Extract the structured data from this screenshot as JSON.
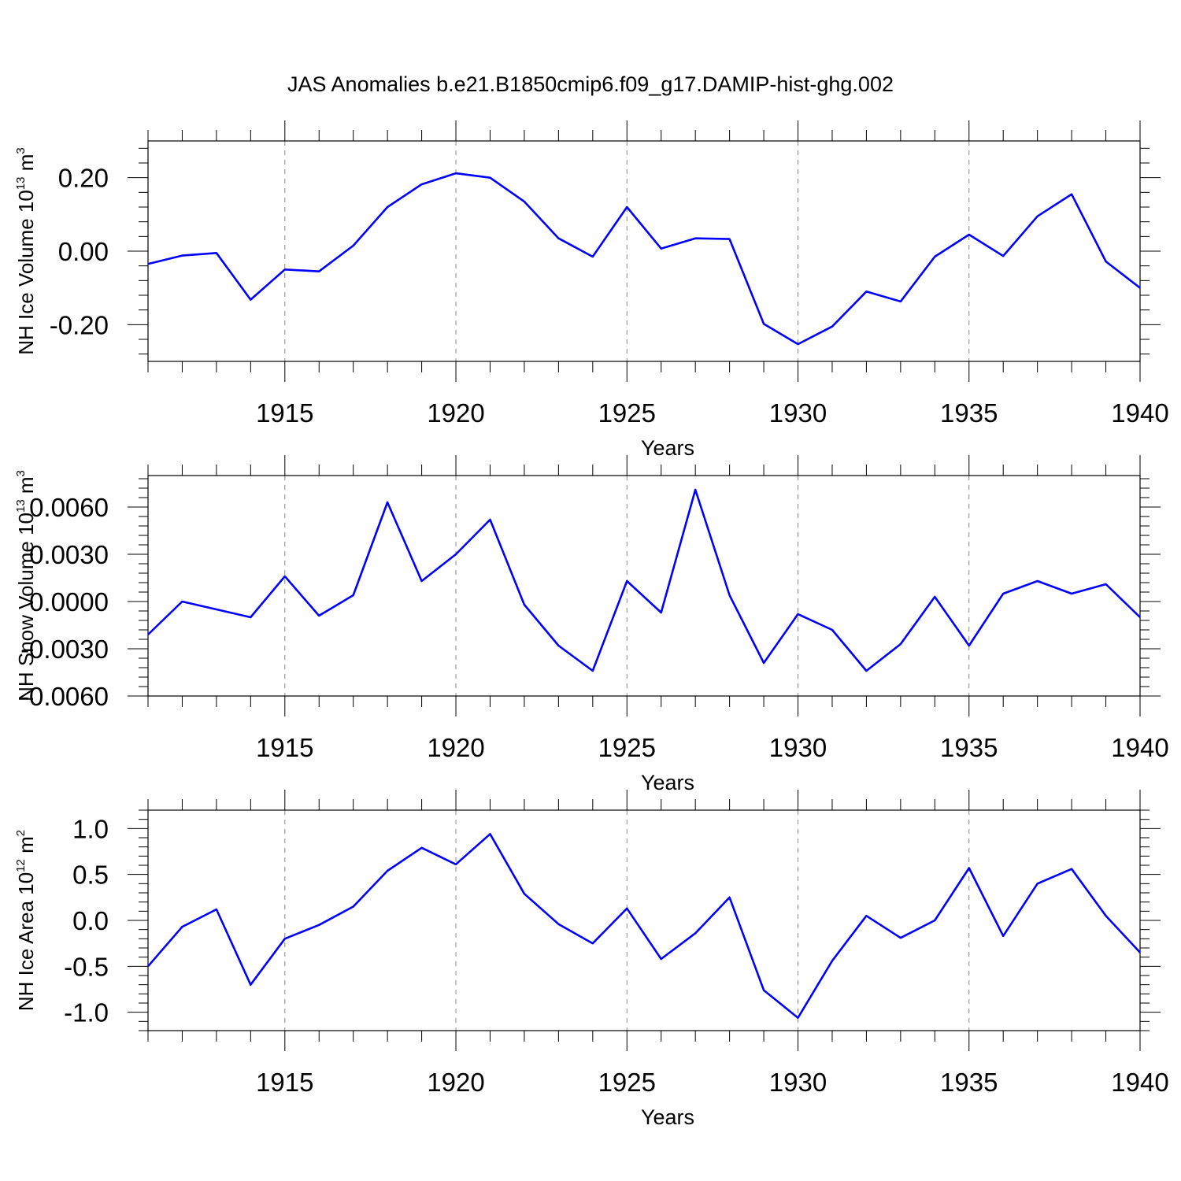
{
  "title": "JAS Anomalies b.e21.B1850cmip6.f09_g17.DAMIP-hist-ghg.002",
  "colors": {
    "line": "#0000ff",
    "grid": "#888888",
    "axes": "#000000"
  },
  "chart_data": [
    {
      "type": "line",
      "ylabel": {
        "text": "NH Ice Volume 10",
        "sup": "13",
        "unit": " m",
        "unit_sup": "3"
      },
      "xlabel": "Years",
      "xlim": [
        1911,
        1940
      ],
      "ylim": [
        -0.3,
        0.3
      ],
      "xticks": [
        "1915",
        "1920",
        "1925",
        "1930",
        "1935",
        "1940"
      ],
      "yticks": [
        {
          "value": 0.2,
          "label": "0.20"
        },
        {
          "value": 0.0,
          "label": "0.00"
        },
        {
          "value": -0.2,
          "label": "-0.20"
        }
      ],
      "grid": "x-major-dashed",
      "x": [
        1911,
        1912,
        1913,
        1914,
        1915,
        1916,
        1917,
        1918,
        1919,
        1920,
        1921,
        1922,
        1923,
        1924,
        1925,
        1926,
        1927,
        1928,
        1929,
        1930,
        1931,
        1932,
        1933,
        1934,
        1935,
        1936,
        1937,
        1938,
        1939,
        1940
      ],
      "y": [
        -0.035,
        -0.012,
        -0.005,
        -0.132,
        -0.05,
        -0.055,
        0.015,
        0.12,
        0.182,
        0.212,
        0.2,
        0.135,
        0.035,
        -0.015,
        0.12,
        0.007,
        0.035,
        0.033,
        -0.198,
        -0.253,
        -0.205,
        -0.11,
        -0.137,
        -0.015,
        0.045,
        -0.013,
        0.095,
        0.155,
        -0.028,
        -0.1
      ]
    },
    {
      "type": "line",
      "ylabel": {
        "text": "NH Snow Volume 10",
        "sup": "13",
        "unit": " m",
        "unit_sup": "3"
      },
      "xlabel": "Years",
      "xlim": [
        1911,
        1940
      ],
      "ylim": [
        -0.006,
        0.008
      ],
      "xticks": [
        "1915",
        "1920",
        "1925",
        "1930",
        "1935",
        "1940"
      ],
      "yticks": [
        {
          "value": 0.006,
          "label": "0.0060"
        },
        {
          "value": 0.003,
          "label": "0.0030"
        },
        {
          "value": 0.0,
          "label": "0.0000"
        },
        {
          "value": -0.003,
          "label": "-0.0030"
        },
        {
          "value": -0.006,
          "label": "-0.0060"
        }
      ],
      "grid": "x-major-dashed",
      "x": [
        1911,
        1912,
        1913,
        1914,
        1915,
        1916,
        1917,
        1918,
        1919,
        1920,
        1921,
        1922,
        1923,
        1924,
        1925,
        1926,
        1927,
        1928,
        1929,
        1930,
        1931,
        1932,
        1933,
        1934,
        1935,
        1936,
        1937,
        1938,
        1939,
        1940
      ],
      "y": [
        -0.0021,
        0.0,
        -0.0005,
        -0.001,
        0.0016,
        -0.0009,
        0.0004,
        0.0063,
        0.0013,
        0.003,
        0.0052,
        -0.0002,
        -0.0028,
        -0.0044,
        0.0013,
        -0.0007,
        0.0071,
        0.0004,
        -0.0039,
        -0.0008,
        -0.0018,
        -0.0044,
        -0.0027,
        0.0003,
        -0.0028,
        0.0005,
        0.0013,
        0.0005,
        0.0011,
        -0.001
      ]
    },
    {
      "type": "line",
      "ylabel": {
        "text": "NH Ice Area 10",
        "sup": "12",
        "unit": " m",
        "unit_sup": "2"
      },
      "xlabel": "Years",
      "xlim": [
        1911,
        1940
      ],
      "ylim": [
        -1.2,
        1.2
      ],
      "xticks": [
        "1915",
        "1920",
        "1925",
        "1930",
        "1935",
        "1940"
      ],
      "yticks": [
        {
          "value": 1.0,
          "label": "1.0"
        },
        {
          "value": 0.5,
          "label": "0.5"
        },
        {
          "value": 0.0,
          "label": "0.0"
        },
        {
          "value": -0.5,
          "label": "-0.5"
        },
        {
          "value": -1.0,
          "label": "-1.0"
        }
      ],
      "grid": "x-major-dashed",
      "x": [
        1911,
        1912,
        1913,
        1914,
        1915,
        1916,
        1917,
        1918,
        1919,
        1920,
        1921,
        1922,
        1923,
        1924,
        1925,
        1926,
        1927,
        1928,
        1929,
        1930,
        1931,
        1932,
        1933,
        1934,
        1935,
        1936,
        1937,
        1938,
        1939,
        1940
      ],
      "y": [
        -0.5,
        -0.07,
        0.12,
        -0.7,
        -0.2,
        -0.05,
        0.15,
        0.54,
        0.79,
        0.61,
        0.94,
        0.29,
        -0.04,
        -0.25,
        0.13,
        -0.42,
        -0.14,
        0.25,
        -0.76,
        -1.06,
        -0.44,
        0.05,
        -0.19,
        0.0,
        0.57,
        -0.17,
        0.4,
        0.56,
        0.05,
        -0.35
      ]
    }
  ]
}
